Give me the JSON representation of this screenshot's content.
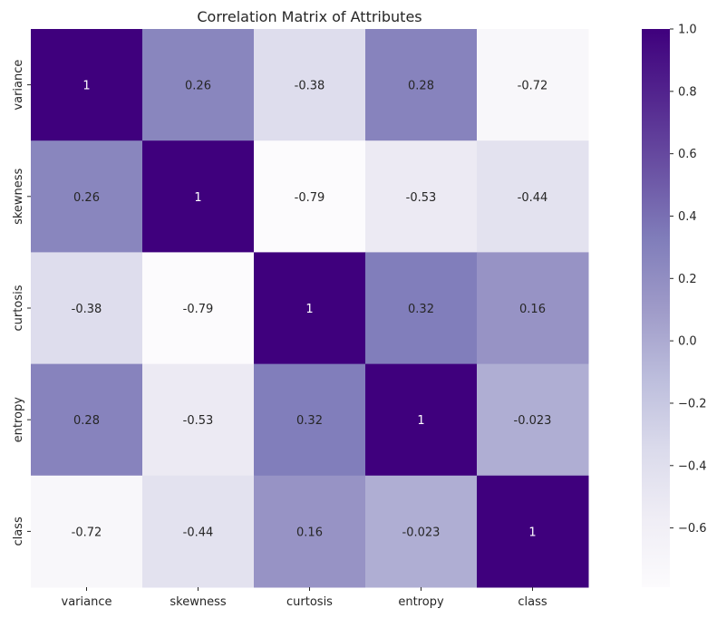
{
  "chart_data": {
    "type": "heatmap",
    "title": "Correlation Matrix of Attributes",
    "x_labels": [
      "variance",
      "skewness",
      "curtosis",
      "entropy",
      "class"
    ],
    "y_labels": [
      "variance",
      "skewness",
      "curtosis",
      "entropy",
      "class"
    ],
    "values": [
      [
        1,
        0.26,
        -0.38,
        0.28,
        -0.72
      ],
      [
        0.26,
        1,
        -0.79,
        -0.53,
        -0.44
      ],
      [
        -0.38,
        -0.79,
        1,
        0.32,
        0.16
      ],
      [
        0.28,
        -0.53,
        0.32,
        1,
        -0.023
      ],
      [
        -0.72,
        -0.44,
        0.16,
        -0.023,
        1
      ]
    ],
    "annotations": [
      [
        "1",
        "0.26",
        "-0.38",
        "0.28",
        "-0.72"
      ],
      [
        "0.26",
        "1",
        "-0.79",
        "-0.53",
        "-0.44"
      ],
      [
        "-0.38",
        "-0.79",
        "1",
        "0.32",
        "0.16"
      ],
      [
        "0.28",
        "-0.53",
        "0.32",
        "1",
        "-0.023"
      ],
      [
        "-0.72",
        "-0.44",
        "0.16",
        "-0.023",
        "1"
      ]
    ],
    "colormap": "Purples",
    "colormap_stops": [
      "#fcfbfd",
      "#efedf5",
      "#dadaeb",
      "#bcbddc",
      "#9e9ac8",
      "#807dba",
      "#6a51a3",
      "#54278f",
      "#3f007d"
    ],
    "vmin": -0.79,
    "vmax": 1,
    "colorbar_ticks": [
      1.0,
      0.8,
      0.6,
      0.4,
      0.2,
      0.0,
      -0.2,
      -0.4,
      -0.6
    ],
    "colorbar_tick_labels": [
      "1.0",
      "0.8",
      "0.6",
      "0.4",
      "0.2",
      "0.0",
      "−0.2",
      "−0.4",
      "−0.6"
    ]
  }
}
